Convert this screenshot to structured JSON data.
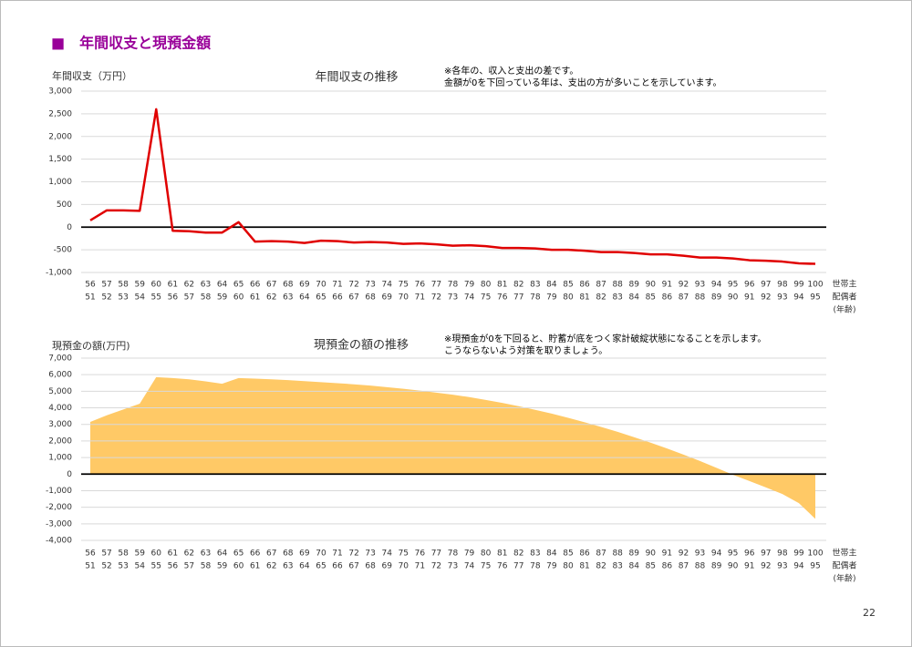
{
  "page_title": "■　年間収支と現預金額",
  "page_number": "22",
  "chart_data": [
    {
      "type": "line",
      "title": "年間収支の推移",
      "ylabel": "年間収支（万円）",
      "annotations": [
        "※各年の、収入と支出の差です。",
        "金額が0を下回っている年は、支出の方が多いことを示しています。"
      ],
      "categories": [
        "56",
        "57",
        "58",
        "59",
        "60",
        "61",
        "62",
        "63",
        "64",
        "65",
        "66",
        "67",
        "68",
        "69",
        "70",
        "71",
        "72",
        "73",
        "74",
        "75",
        "76",
        "77",
        "78",
        "79",
        "80",
        "81",
        "82",
        "83",
        "84",
        "85",
        "86",
        "87",
        "88",
        "89",
        "90",
        "91",
        "92",
        "93",
        "94",
        "95",
        "96",
        "97",
        "98",
        "99",
        "100"
      ],
      "spouse_categories": [
        "51",
        "52",
        "53",
        "54",
        "55",
        "56",
        "57",
        "58",
        "59",
        "60",
        "61",
        "62",
        "63",
        "64",
        "65",
        "66",
        "67",
        "68",
        "69",
        "70",
        "71",
        "72",
        "73",
        "74",
        "75",
        "76",
        "77",
        "78",
        "79",
        "80",
        "81",
        "82",
        "83",
        "84",
        "85",
        "86",
        "87",
        "88",
        "89",
        "90",
        "91",
        "92",
        "93",
        "94",
        "95"
      ],
      "xlabel_lines": [
        "世帯主",
        "配偶者",
        "(年齢)"
      ],
      "color": "#e00000",
      "values": [
        150,
        370,
        370,
        360,
        2600,
        -80,
        -90,
        -120,
        -120,
        110,
        -320,
        -310,
        -320,
        -350,
        -300,
        -310,
        -340,
        -330,
        -340,
        -370,
        -360,
        -380,
        -410,
        -400,
        -420,
        -460,
        -460,
        -470,
        -500,
        -500,
        -520,
        -550,
        -550,
        -570,
        -600,
        -600,
        -630,
        -670,
        -670,
        -690,
        -730,
        -740,
        -760,
        -800,
        -810
      ],
      "ylim": [
        -1000,
        3000
      ],
      "yticks": [
        {
          "value": -1000,
          "label": "-1,000"
        },
        -500,
        0,
        500,
        {
          "value": 1000,
          "label": "1,000"
        },
        {
          "value": 1500,
          "label": "1,500"
        },
        {
          "value": 2000,
          "label": "2,000"
        },
        {
          "value": 2500,
          "label": "2,500"
        },
        {
          "value": 3000,
          "label": "3,000"
        }
      ],
      "grid": true
    },
    {
      "type": "area",
      "title": "現預金の額の推移",
      "ylabel": "現預金の額(万円)",
      "annotations": [
        "※現預金が0を下回ると、貯蓄が底をつく家計破綻状態になることを示します。",
        "こうならないよう対策を取りましょう。"
      ],
      "categories": [
        "56",
        "57",
        "58",
        "59",
        "60",
        "61",
        "62",
        "63",
        "64",
        "65",
        "66",
        "67",
        "68",
        "69",
        "70",
        "71",
        "72",
        "73",
        "74",
        "75",
        "76",
        "77",
        "78",
        "79",
        "80",
        "81",
        "82",
        "83",
        "84",
        "85",
        "86",
        "87",
        "88",
        "89",
        "90",
        "91",
        "92",
        "93",
        "94",
        "95",
        "96",
        "97",
        "98",
        "99",
        "100"
      ],
      "spouse_categories": [
        "51",
        "52",
        "53",
        "54",
        "55",
        "56",
        "57",
        "58",
        "59",
        "60",
        "61",
        "62",
        "63",
        "64",
        "65",
        "66",
        "67",
        "68",
        "69",
        "70",
        "71",
        "72",
        "73",
        "74",
        "75",
        "76",
        "77",
        "78",
        "79",
        "80",
        "81",
        "82",
        "83",
        "84",
        "85",
        "86",
        "87",
        "88",
        "89",
        "90",
        "91",
        "92",
        "93",
        "94",
        "95"
      ],
      "xlabel_lines": [
        "世帯主",
        "配偶者",
        "(年齢)"
      ],
      "color": "#ffc966",
      "values": [
        3150,
        3550,
        3900,
        4250,
        5850,
        5800,
        5720,
        5600,
        5450,
        5800,
        5760,
        5720,
        5670,
        5610,
        5550,
        5490,
        5420,
        5340,
        5250,
        5150,
        5040,
        4920,
        4790,
        4650,
        4480,
        4300,
        4100,
        3880,
        3650,
        3400,
        3130,
        2850,
        2550,
        2230,
        1900,
        1550,
        1180,
        790,
        380,
        -40,
        -420,
        -800,
        -1200,
        -1750,
        -2700
      ],
      "ylim": [
        -4000,
        7000
      ],
      "yticks": [
        {
          "value": -4000,
          "label": "-4,000"
        },
        {
          "value": -3000,
          "label": "-3,000"
        },
        {
          "value": -2000,
          "label": "-2,000"
        },
        {
          "value": -1000,
          "label": "-1,000"
        },
        0,
        {
          "value": 1000,
          "label": "1,000"
        },
        {
          "value": 2000,
          "label": "2,000"
        },
        {
          "value": 3000,
          "label": "3,000"
        },
        {
          "value": 4000,
          "label": "4,000"
        },
        {
          "value": 5000,
          "label": "5,000"
        },
        {
          "value": 6000,
          "label": "6,000"
        },
        {
          "value": 7000,
          "label": "7,000"
        }
      ],
      "grid": true
    }
  ]
}
